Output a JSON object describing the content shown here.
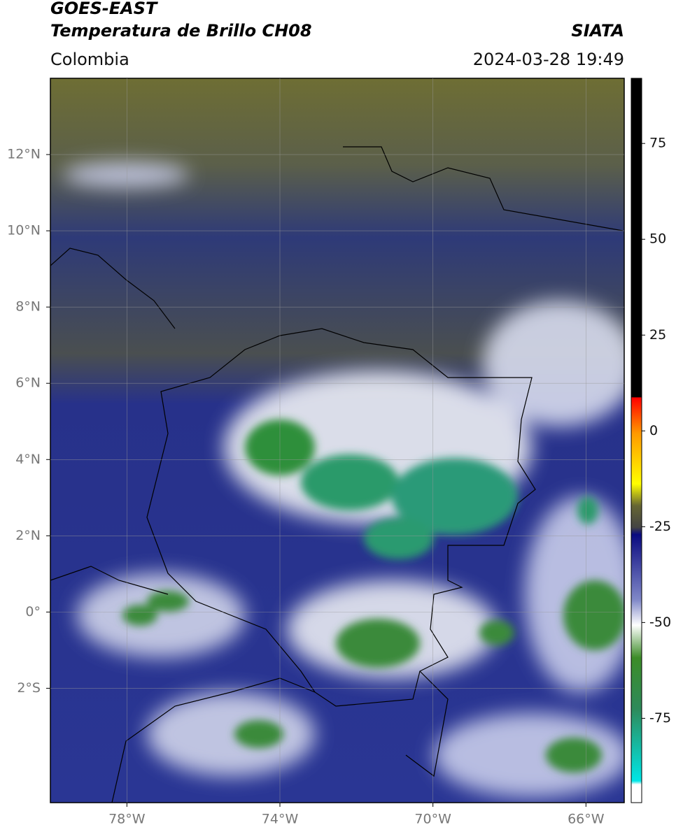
{
  "header": {
    "title": "GOES-EAST",
    "subtitle": "Temperatura de Brillo CH08",
    "region": "Colombia",
    "source": "SIATA",
    "datetime": "2024-03-28 19:49"
  },
  "map": {
    "xlim": [
      -80,
      -65
    ],
    "ylim": [
      -5,
      14
    ],
    "xticks": [
      {
        "value": -78,
        "label": "78°W"
      },
      {
        "value": -74,
        "label": "74°W"
      },
      {
        "value": -70,
        "label": "70°W"
      },
      {
        "value": -66,
        "label": "66°W"
      }
    ],
    "yticks": [
      {
        "value": 12,
        "label": "12°N"
      },
      {
        "value": 10,
        "label": "10°N"
      },
      {
        "value": 8,
        "label": "8°N"
      },
      {
        "value": 6,
        "label": "6°N"
      },
      {
        "value": 4,
        "label": "4°N"
      },
      {
        "value": 2,
        "label": "2°N"
      },
      {
        "value": 0,
        "label": "0°"
      },
      {
        "value": -2,
        "label": "2°S"
      }
    ],
    "grid": true,
    "colorbar": {
      "lim": [
        -97,
        92
      ],
      "ticks": [
        75,
        50,
        25,
        0,
        -25,
        -50,
        -75
      ]
    }
  }
}
